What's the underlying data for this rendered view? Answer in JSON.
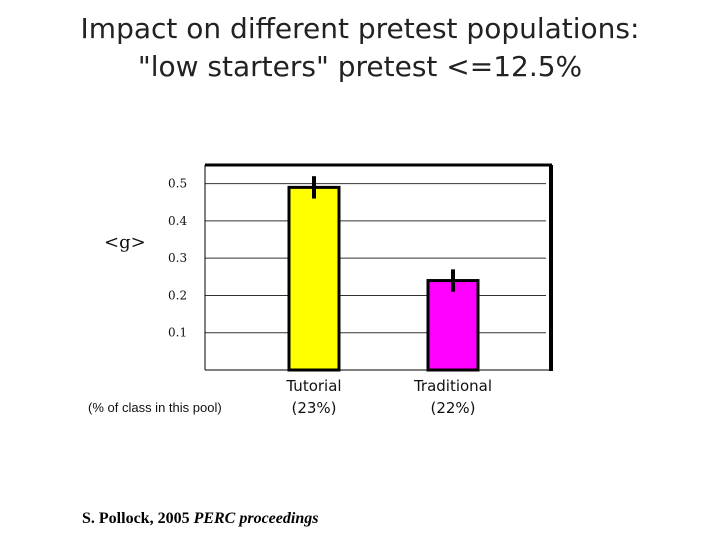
{
  "chart_data": {
    "type": "bar",
    "title": [
      "Impact on different pretest populations:",
      "\"low starters\" pretest <=12.5%"
    ],
    "ylabel": "<g>",
    "xlabel": "",
    "ylim": [
      0,
      0.55
    ],
    "yticks": [
      0.1,
      0.2,
      0.3,
      0.4,
      0.5
    ],
    "ytick_labels": [
      "0.1",
      "0.2",
      "0.3",
      "0.4",
      "0.5"
    ],
    "grid": true,
    "legend": "none",
    "categories": [
      "Tutorial",
      "Traditional"
    ],
    "category_notes": [
      "(23%)",
      "(22%)"
    ],
    "values": [
      0.49,
      0.24
    ],
    "errors": [
      0.03,
      0.03
    ],
    "colors": [
      "#ffff00",
      "#ff00ff"
    ],
    "x_note": "(% of class in this pool)"
  },
  "citation": {
    "author": "S. Pollock,  2005",
    "source": "PERC proceedings"
  }
}
